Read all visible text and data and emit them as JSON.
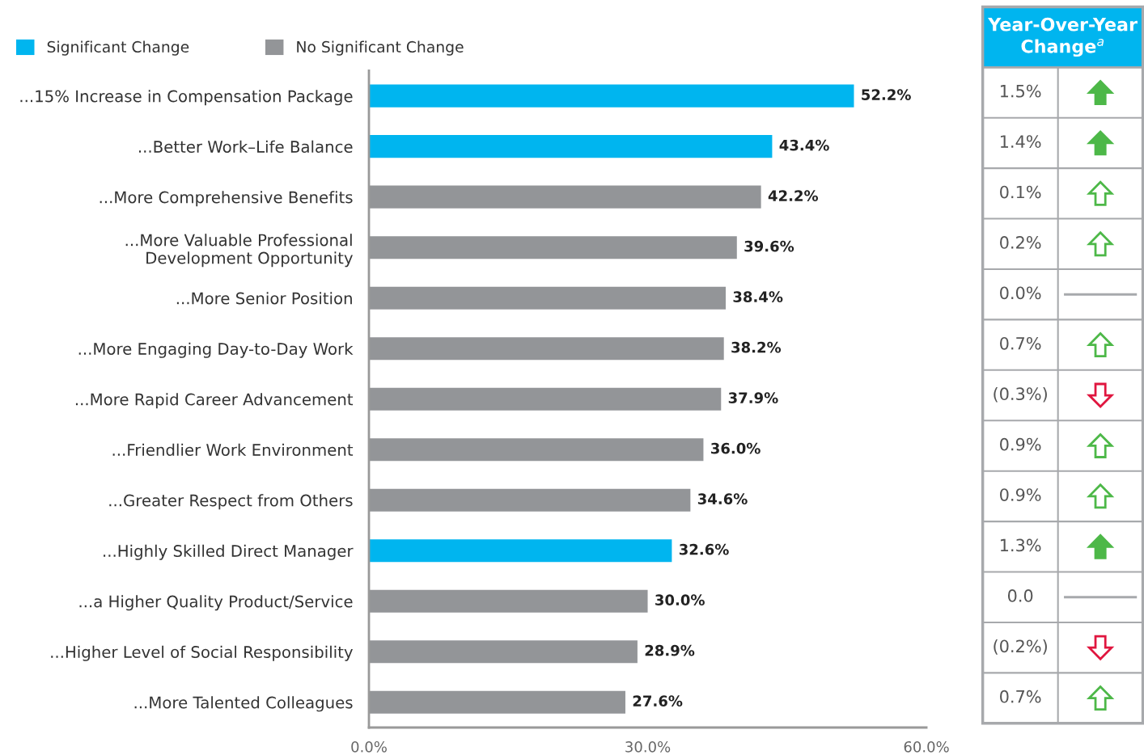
{
  "chart_data": [
    {
      "type": "bar",
      "orientation": "horizontal",
      "legend": "top left",
      "grid": false,
      "data_labels": true,
      "categories": [
        "...15% Increase in Compensation Package",
        "...Better Work–Life Balance",
        "...More Comprehensive Benefits",
        "...More Valuable Professional\nDevelopment Opportunity",
        "...More Senior Position",
        "...More Engaging Day-to-Day Work",
        "...More Rapid Career Advancement",
        "...Friendlier Work Environment",
        "...Greater Respect from Others",
        "...Highly Skilled Direct Manager",
        "...a Higher Quality Product/Service",
        "...Higher Level of Social Responsibility",
        "...More Talented Colleagues"
      ],
      "series": [
        {
          "name": "Significant Change",
          "color": "#00b5ef",
          "values": [
            52.2,
            43.4,
            null,
            null,
            null,
            null,
            null,
            null,
            null,
            32.6,
            null,
            null,
            null
          ],
          "value_labels": [
            "52.2%",
            "43.4%",
            null,
            null,
            null,
            null,
            null,
            null,
            null,
            "32.6%",
            null,
            null,
            null
          ]
        },
        {
          "name": "No Significant Change",
          "color": "#939598",
          "values": [
            null,
            null,
            42.2,
            39.6,
            38.4,
            38.2,
            37.9,
            36.0,
            34.6,
            null,
            30.0,
            28.9,
            27.6
          ],
          "value_labels": [
            null,
            null,
            "42.2%",
            "39.6%",
            "38.4%",
            "38.2%",
            "37.9%",
            "36.0%",
            "34.6%",
            null,
            "30.0%",
            "28.9%",
            "27.6%"
          ]
        }
      ],
      "xlim": [
        0,
        60
      ],
      "xticks": [
        {
          "value": 0,
          "label": "0.0%"
        },
        {
          "value": 30,
          "label": "30.0%"
        },
        {
          "value": 60,
          "label": "60.0%"
        }
      ]
    },
    {
      "type": "other",
      "title": "Year-Over-Year Change$^{a}$",
      "values": [
        1.5,
        1.4,
        0.1,
        0.2,
        0.0,
        0.7,
        -0.3,
        0.9,
        0.9,
        1.3,
        0.0,
        -0.2,
        0.7
      ],
      "value_labels": [
        "1.5%",
        "1.4%",
        "0.1%",
        "0.2%",
        "0.0%",
        "0.7%",
        "(0.3%)",
        "0.9%",
        "0.9%",
        "1.3%",
        "0.0",
        "(0.2%)",
        "0.7%"
      ],
      "colors": [
        "#4db848",
        "#4db848",
        "#4db848",
        "#4db848",
        "#a7a9ac",
        "#4db848",
        "#e0163f",
        "#4db848",
        "#4db848",
        "#4db848",
        "#a7a9ac",
        "#e0163f",
        "#4db848"
      ]
    }
  ]
}
